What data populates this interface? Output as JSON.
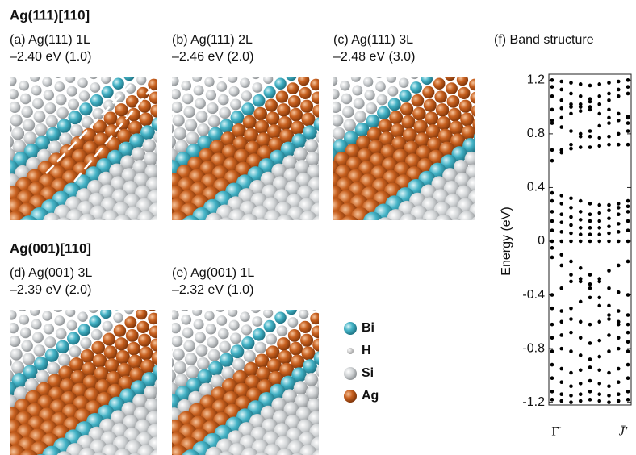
{
  "sections": [
    {
      "title": "Ag(111)[110]",
      "panels": [
        {
          "label": "(a) Ag(111) 1L",
          "energy": "–2.40 eV (1.0)"
        },
        {
          "label": "(b) Ag(111) 2L",
          "energy": "–2.46 eV (2.0)"
        },
        {
          "label": "(c) Ag(111) 3L",
          "energy": "–2.48 eV (3.0)"
        }
      ]
    },
    {
      "title": "Ag(001)[110]",
      "panels": [
        {
          "label": "(d) Ag(001) 3L",
          "energy": "–2.39 eV (2.0)"
        },
        {
          "label": "(e) Ag(001) 1L",
          "energy": "–2.32 eV (1.0)"
        }
      ]
    }
  ],
  "legend": [
    "Bi",
    "H",
    "Si",
    "Ag"
  ],
  "band_structure": {
    "title": "(f) Band structure",
    "ylabel": "Energy (eV)",
    "ylim": [
      -1.22,
      1.22
    ],
    "yticks": [
      1.2,
      0.8,
      0.4,
      0,
      -0.4,
      -0.8,
      -1.2
    ],
    "xtick_labels": [
      "Γ̄",
      "J̄′"
    ],
    "bands": [
      [
        1.2,
        1.19,
        1.18,
        1.17,
        1.16,
        1.17,
        1.18,
        1.19,
        1.2
      ],
      [
        1.15,
        1.13,
        1.1,
        1.08,
        1.06,
        1.08,
        1.1,
        1.13,
        1.15
      ],
      [
        1.08,
        1.05,
        1.02,
        1.0,
        1.0,
        1.02,
        1.05,
        1.08,
        1.1
      ],
      [
        0.98,
        0.99,
        1.0,
        1.02,
        1.04,
        1.02,
        0.98,
        0.95,
        0.93
      ],
      [
        0.9,
        0.92,
        0.95,
        0.97,
        0.98,
        0.95,
        0.92,
        0.9,
        0.88
      ],
      [
        0.88,
        0.85,
        0.82,
        0.8,
        0.78,
        0.77,
        0.78,
        0.8,
        0.82
      ],
      [
        0.6,
        0.66,
        0.72,
        0.78,
        0.82,
        0.86,
        0.88,
        0.9,
        0.92
      ],
      [
        0.68,
        0.68,
        0.69,
        0.7,
        0.7,
        0.71,
        0.72,
        0.72,
        0.72
      ],
      [
        0.36,
        0.34,
        0.32,
        0.3,
        0.28,
        0.27,
        0.27,
        0.28,
        0.3
      ],
      [
        0.3,
        0.28,
        0.25,
        0.22,
        0.2,
        0.21,
        0.23,
        0.25,
        0.26
      ],
      [
        0.22,
        0.2,
        0.18,
        0.16,
        0.15,
        0.15,
        0.17,
        0.2,
        0.22
      ],
      [
        0.15,
        0.14,
        0.12,
        0.1,
        0.1,
        0.1,
        0.11,
        0.13,
        0.15
      ],
      [
        0.08,
        0.07,
        0.06,
        0.05,
        0.05,
        0.05,
        0.06,
        0.07,
        0.08
      ],
      [
        0.0,
        0.0,
        0.0,
        0.0,
        0.0,
        0.0,
        0.0,
        0.0,
        0.0
      ],
      [
        -0.05,
        -0.1,
        -0.15,
        -0.2,
        -0.25,
        -0.3,
        -0.35,
        -0.38,
        -0.4
      ],
      [
        -0.12,
        -0.18,
        -0.25,
        -0.3,
        -0.32,
        -0.28,
        -0.22,
        -0.18,
        -0.15
      ],
      [
        -0.4,
        -0.35,
        -0.3,
        -0.28,
        -0.35,
        -0.42,
        -0.48,
        -0.52,
        -0.55
      ],
      [
        -0.5,
        -0.52,
        -0.5,
        -0.45,
        -0.42,
        -0.48,
        -0.55,
        -0.6,
        -0.62
      ],
      [
        -0.62,
        -0.6,
        -0.58,
        -0.6,
        -0.62,
        -0.6,
        -0.58,
        -0.62,
        -0.68
      ],
      [
        -0.72,
        -0.7,
        -0.68,
        -0.72,
        -0.76,
        -0.74,
        -0.7,
        -0.72,
        -0.75
      ],
      [
        -0.82,
        -0.8,
        -0.82,
        -0.85,
        -0.88,
        -0.86,
        -0.82,
        -0.8,
        -0.82
      ],
      [
        -0.92,
        -0.95,
        -0.98,
        -0.96,
        -0.94,
        -0.96,
        -0.98,
        -0.95,
        -0.92
      ],
      [
        -1.02,
        -1.05,
        -1.08,
        -1.06,
        -1.04,
        -1.06,
        -1.08,
        -1.05,
        -1.02
      ],
      [
        -1.12,
        -1.14,
        -1.15,
        -1.14,
        -1.12,
        -1.14,
        -1.15,
        -1.14,
        -1.12
      ],
      [
        -1.18,
        -1.19,
        -1.2,
        -1.19,
        -1.18,
        -1.19,
        -1.2,
        -1.19,
        -1.18
      ]
    ]
  }
}
